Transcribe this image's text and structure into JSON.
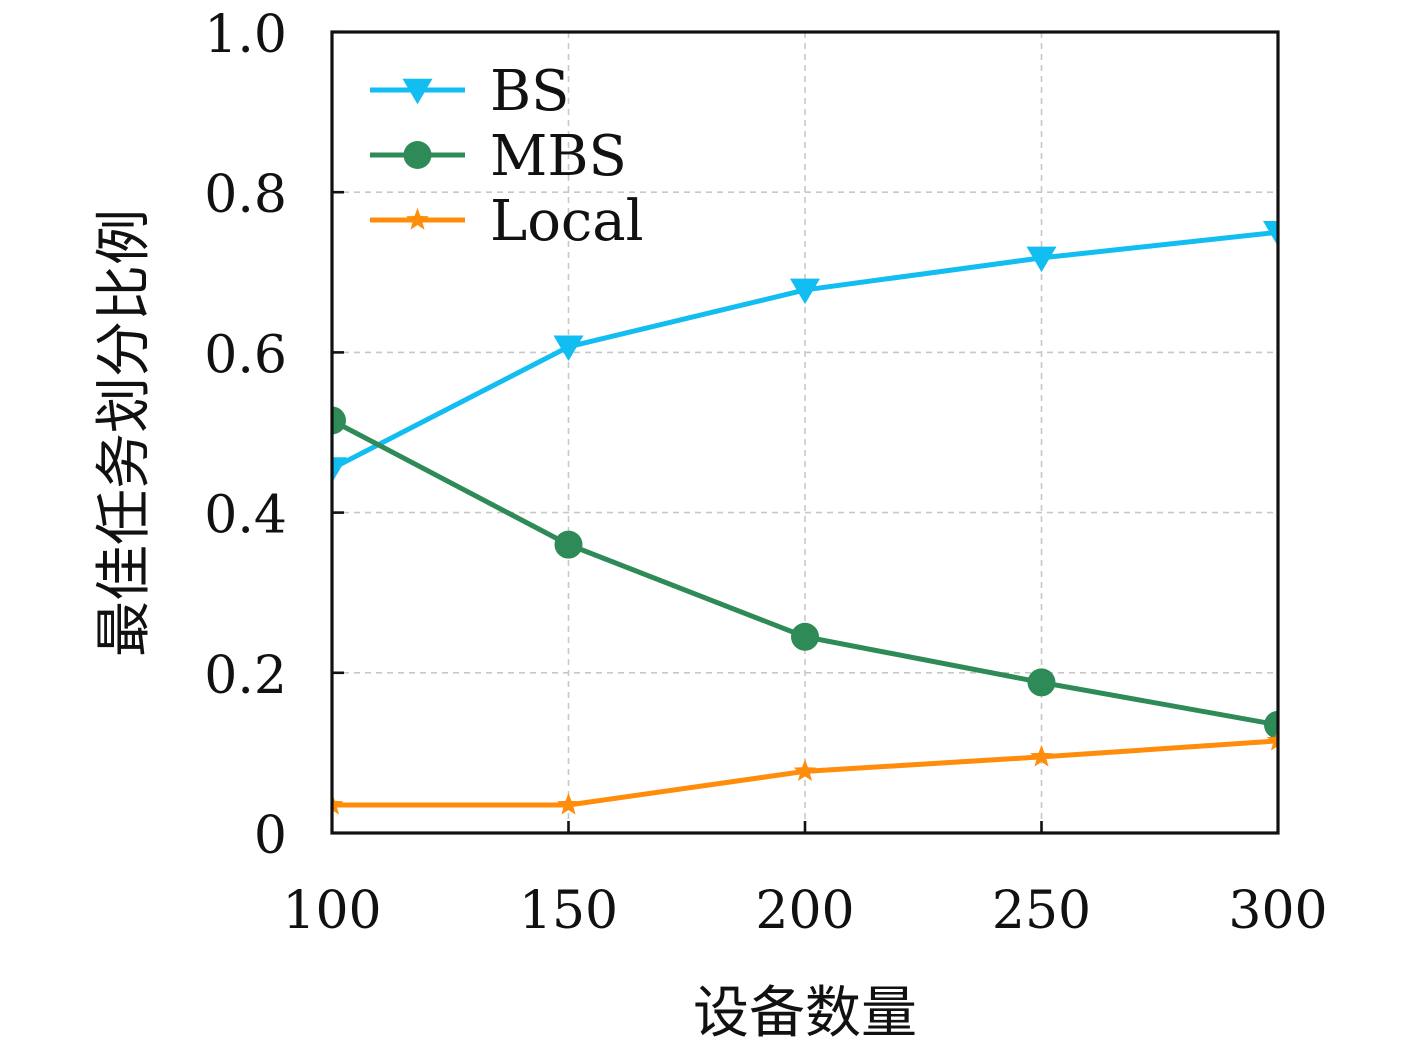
{
  "chart_data": {
    "type": "line",
    "title": "",
    "xlabel": "设备数量",
    "ylabel": "最佳任务划分比例",
    "x": [
      100,
      150,
      200,
      250,
      300
    ],
    "xlim": [
      100,
      300
    ],
    "ylim": [
      0,
      1.0
    ],
    "x_ticks": [
      100,
      150,
      200,
      250,
      300
    ],
    "x_tick_labels": [
      "100",
      "150",
      "200",
      "250",
      "300"
    ],
    "y_ticks": [
      0,
      0.2,
      0.4,
      0.6,
      0.8,
      1.0
    ],
    "y_tick_labels": [
      "0",
      "0.2",
      "0.4",
      "0.6",
      "0.8",
      "1.0"
    ],
    "grid": true,
    "legend_position": "top-left",
    "series": [
      {
        "name": "BS",
        "values": [
          0.455,
          0.607,
          0.678,
          0.718,
          0.75
        ],
        "color": "#12BDF1",
        "marker": "triangle-down"
      },
      {
        "name": "MBS",
        "values": [
          0.515,
          0.36,
          0.245,
          0.188,
          0.135
        ],
        "color": "#2E8B57",
        "marker": "circle"
      },
      {
        "name": "Local",
        "values": [
          0.035,
          0.035,
          0.077,
          0.095,
          0.115
        ],
        "color": "#FF8C0A",
        "marker": "star"
      }
    ]
  }
}
